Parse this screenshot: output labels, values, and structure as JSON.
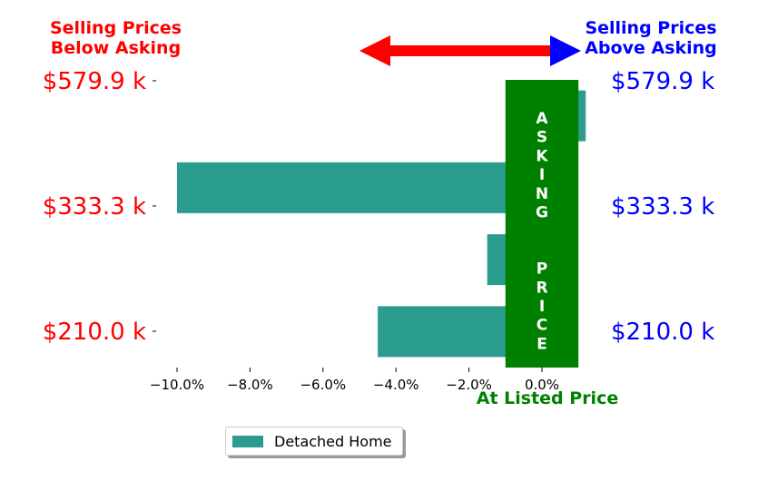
{
  "header": {
    "left_label": "Selling Prices\nBelow Asking",
    "right_label": "Selling Prices\nAbove Asking"
  },
  "colors": {
    "bar": "#2a9d8f",
    "asking_band": "#008000",
    "left_text": "#ff0000",
    "right_text": "#0000ff"
  },
  "chart_data": {
    "type": "bar",
    "orientation": "horizontal",
    "series": [
      {
        "name": "Detached Home",
        "values": [
          -4.5,
          -1.5,
          -10.0,
          1.2
        ]
      }
    ],
    "y_ticks_left": [
      "$210.0 k",
      "$333.3 k",
      "$579.9 k"
    ],
    "y_ticks_right": [
      "$210.0 k",
      "$333.3 k",
      "$579.9 k"
    ],
    "x_ticks": [
      "−10.0%",
      "−8.0%",
      "−6.0%",
      "−4.0%",
      "−2.0%",
      "0.0%"
    ],
    "x_tick_values": [
      -10,
      -8,
      -6,
      -4,
      -2,
      0
    ],
    "xlim": [
      -10.5,
      1.2
    ],
    "band_range": [
      -1.0,
      1.0
    ],
    "band_text": "ASKING  PRICE",
    "xlabel": "At Listed Price",
    "legend": "bottom-center"
  }
}
